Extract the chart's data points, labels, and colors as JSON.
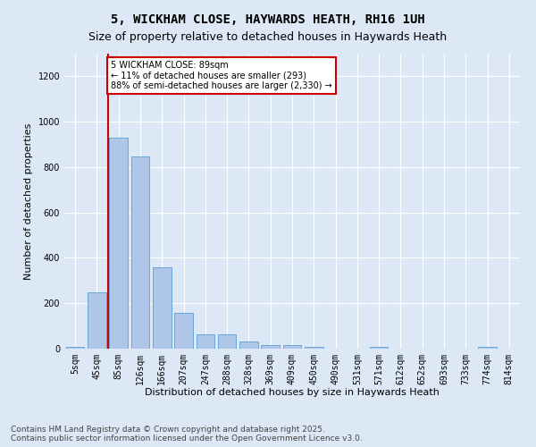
{
  "title": "5, WICKHAM CLOSE, HAYWARDS HEATH, RH16 1UH",
  "subtitle": "Size of property relative to detached houses in Haywards Heath",
  "xlabel": "Distribution of detached houses by size in Haywards Heath",
  "ylabel": "Number of detached properties",
  "footer_line1": "Contains HM Land Registry data © Crown copyright and database right 2025.",
  "footer_line2": "Contains public sector information licensed under the Open Government Licence v3.0.",
  "bar_labels": [
    "5sqm",
    "45sqm",
    "85sqm",
    "126sqm",
    "166sqm",
    "207sqm",
    "247sqm",
    "288sqm",
    "328sqm",
    "369sqm",
    "409sqm",
    "450sqm",
    "490sqm",
    "531sqm",
    "571sqm",
    "612sqm",
    "652sqm",
    "693sqm",
    "733sqm",
    "774sqm",
    "814sqm"
  ],
  "bar_values": [
    8,
    248,
    930,
    848,
    358,
    158,
    65,
    65,
    30,
    14,
    14,
    8,
    0,
    0,
    8,
    0,
    0,
    0,
    0,
    8,
    0
  ],
  "bar_color": "#aec6e8",
  "bar_edge_color": "#5a9fd4",
  "ylim": [
    0,
    1300
  ],
  "yticks": [
    0,
    200,
    400,
    600,
    800,
    1000,
    1200
  ],
  "property_line_bin": 2,
  "property_label": "5 WICKHAM CLOSE: 89sqm",
  "annotation_line1": "← 11% of detached houses are smaller (293)",
  "annotation_line2": "88% of semi-detached houses are larger (2,330) →",
  "annotation_box_color": "#ffffff",
  "annotation_box_edge": "#cc0000",
  "line_color": "#cc0000",
  "background_color": "#dce8f5",
  "plot_bg_color": "#dce8f5",
  "grid_color": "#ffffff",
  "title_fontsize": 10,
  "subtitle_fontsize": 9,
  "axis_label_fontsize": 8,
  "tick_fontsize": 7,
  "footer_fontsize": 6.5
}
